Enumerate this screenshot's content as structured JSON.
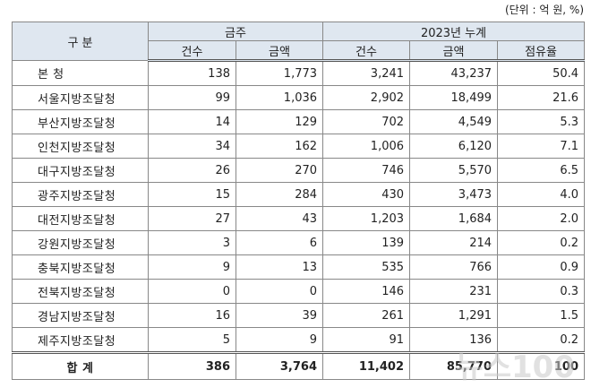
{
  "unit_note": "(단위 : 억 원, %)",
  "table": {
    "header_top": [
      "구 분",
      "금주",
      "2023년 누계"
    ],
    "header_sub": [
      "건수",
      "금액",
      "건수",
      "금액",
      "점유율"
    ],
    "rows": [
      [
        "본  청",
        "138",
        "1,773",
        "3,241",
        "43,237",
        "50.4"
      ],
      [
        "서울지방조달청",
        "99",
        "1,036",
        "2,902",
        "18,499",
        "21.6"
      ],
      [
        "부산지방조달청",
        "14",
        "129",
        "702",
        "4,549",
        "5.3"
      ],
      [
        "인천지방조달청",
        "34",
        "162",
        "1,006",
        "6,120",
        "7.1"
      ],
      [
        "대구지방조달청",
        "26",
        "270",
        "746",
        "5,570",
        "6.5"
      ],
      [
        "광주지방조달청",
        "15",
        "284",
        "430",
        "3,473",
        "4.0"
      ],
      [
        "대전지방조달청",
        "27",
        "43",
        "1,203",
        "1,684",
        "2.0"
      ],
      [
        "강원지방조달청",
        "3",
        "6",
        "139",
        "214",
        "0.2"
      ],
      [
        "충북지방조달청",
        "9",
        "13",
        "535",
        "766",
        "0.9"
      ],
      [
        "전북지방조달청",
        "0",
        "0",
        "146",
        "231",
        "0.3"
      ],
      [
        "경남지방조달청",
        "16",
        "39",
        "261",
        "1,291",
        "1.5"
      ],
      [
        "제주지방조달청",
        "5",
        "9",
        "91",
        "136",
        "0.2"
      ]
    ],
    "total": [
      "합  계",
      "386",
      "3,764",
      "11,402",
      "85,770",
      "100"
    ]
  },
  "watermark": "뉴스100"
}
